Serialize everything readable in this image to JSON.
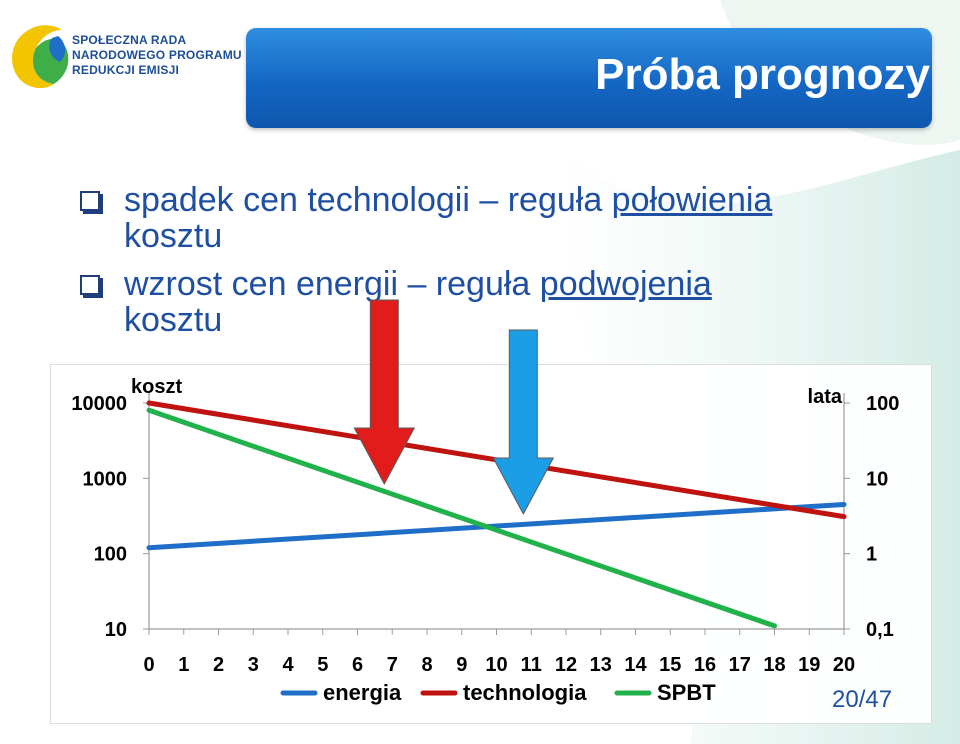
{
  "logo": {
    "line1": "SPOŁECZNA RADA",
    "line2": "NARODOWEGO PROGRAMU",
    "line3": "REDUKCJI EMISJI"
  },
  "title": "Próba prognozy",
  "bullets": [
    {
      "pre": "spadek cen technologii – reguła ",
      "underlined": "połowienia",
      "post": "kosztu"
    },
    {
      "pre": "wzrost cen energii – reguła ",
      "underlined": "podwojenia",
      "post": "kosztu"
    }
  ],
  "slide_number": "20/47",
  "colors": {
    "energia": "#1f6fc9",
    "technologia": "#c0120f",
    "spbt": "#22b24c",
    "arrow_red": "#e21b1b",
    "arrow_blue": "#1c9ee6",
    "title_bar": "#1467c4",
    "bullet_text": "#1f4fa3"
  },
  "chart_data": {
    "type": "line",
    "left_axis_label": "koszt",
    "right_axis_label": "lata",
    "x": [
      0,
      1,
      2,
      3,
      4,
      5,
      6,
      7,
      8,
      9,
      10,
      11,
      12,
      13,
      14,
      15,
      16,
      17,
      18,
      19,
      20
    ],
    "x_tick_labels": [
      "0",
      "1",
      "2",
      "3",
      "4",
      "5",
      "6",
      "7",
      "8",
      "9",
      "10",
      "11",
      "12",
      "13",
      "14",
      "15",
      "16",
      "17",
      "18",
      "19",
      "20"
    ],
    "left_ticks": [
      {
        "value": 10,
        "label": "10"
      },
      {
        "value": 100,
        "label": "100"
      },
      {
        "value": 1000,
        "label": "1000"
      },
      {
        "value": 10000,
        "label": "10000"
      }
    ],
    "right_ticks": [
      {
        "value": 0.1,
        "label": "0,1"
      },
      {
        "value": 1,
        "label": "1"
      },
      {
        "value": 10,
        "label": "10"
      },
      {
        "value": 100,
        "label": "100"
      }
    ],
    "left_scale": "log",
    "right_scale": "log",
    "left_ylim": [
      10,
      10000
    ],
    "right_ylim": [
      0.1,
      100
    ],
    "xlim": [
      0,
      20
    ],
    "grid": false,
    "legend_position": "bottom",
    "series": [
      {
        "name": "energia",
        "axis": "left",
        "x": [
          0,
          20
        ],
        "values": [
          120,
          450
        ]
      },
      {
        "name": "technologia",
        "axis": "left",
        "x": [
          0,
          20
        ],
        "values": [
          10000,
          310
        ]
      },
      {
        "name": "SPBT",
        "axis": "right",
        "x": [
          0,
          18
        ],
        "values": [
          80,
          0.11
        ]
      }
    ],
    "annotations": [
      {
        "type": "arrow-down",
        "name": "red-arrow",
        "x": 6.8
      },
      {
        "type": "arrow-down",
        "name": "blue-arrow",
        "x": 10.8
      }
    ]
  }
}
